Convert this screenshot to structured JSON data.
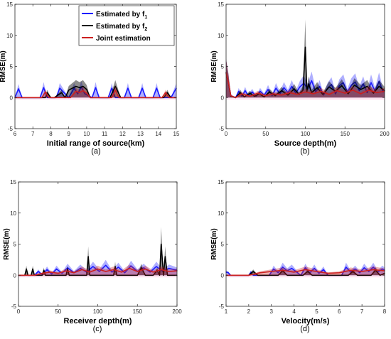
{
  "figure": {
    "panel_captions": [
      "(a)",
      "(b)",
      "(c)",
      "(d)"
    ]
  },
  "colors": {
    "f1": "#1a1aff",
    "f2": "#000000",
    "joint": "#cc1f1f",
    "zero_line": "#ff66aa"
  },
  "legend": {
    "entries": [
      {
        "series": "f1",
        "prefix": "Estimated by f",
        "subscript": "1"
      },
      {
        "series": "f2",
        "prefix": "Estimated by f",
        "subscript": "2"
      },
      {
        "series": "joint",
        "prefix": "Joint estimation",
        "subscript": ""
      }
    ]
  },
  "chart_data": [
    {
      "type": "line",
      "caption": "(a)",
      "xlabel": "Initial range of source(km)",
      "ylabel": "RMSE(m)",
      "xlim": [
        6,
        15
      ],
      "ylim": [
        -5,
        15
      ],
      "xticks": [
        6,
        7,
        8,
        9,
        10,
        11,
        12,
        13,
        14,
        15
      ],
      "yticks": [
        -5,
        0,
        5,
        10,
        15
      ],
      "grid": false,
      "legend_position": "top-right",
      "series": [
        {
          "key": "f1",
          "shaded": true,
          "x": [
            6.0,
            6.2,
            6.4,
            7.4,
            7.6,
            7.8,
            8.3,
            8.5,
            9.0,
            9.3,
            9.5,
            9.7,
            9.9,
            10.3,
            10.5,
            10.7,
            11.2,
            11.4,
            11.6,
            12.1,
            12.3,
            12.5,
            12.9,
            13.1,
            13.3,
            13.7,
            13.9,
            14.1,
            14.7,
            15.0
          ],
          "y": [
            0,
            1.4,
            0,
            0,
            1.6,
            0,
            0,
            1.5,
            0,
            1.5,
            0.6,
            1.7,
            0.6,
            0,
            1.6,
            0,
            0,
            1.5,
            0,
            0,
            1.5,
            0,
            0,
            1.5,
            0,
            0,
            1.5,
            0,
            0,
            1.5
          ]
        },
        {
          "key": "f2",
          "shaded": true,
          "x": [
            6.0,
            7.7,
            7.8,
            8.0,
            8.2,
            8.6,
            8.8,
            9.0,
            9.2,
            9.4,
            9.6,
            9.8,
            10.0,
            10.2,
            11.3,
            11.6,
            11.9,
            14.3,
            14.5,
            14.7,
            15.0
          ],
          "y": [
            0,
            0,
            0.8,
            0,
            0,
            0.8,
            0,
            1.2,
            1.5,
            1.8,
            1.6,
            1.8,
            1.3,
            0,
            0,
            1.8,
            0,
            0,
            0.8,
            0,
            0
          ]
        },
        {
          "key": "joint",
          "shaded": true,
          "x": [
            6.0,
            7.5,
            7.7,
            7.9,
            9.1,
            9.4,
            9.6,
            9.8,
            10.0,
            10.2,
            11.4,
            11.6,
            11.8,
            14.2,
            14.4,
            14.6,
            15.0
          ],
          "y": [
            0,
            0,
            0.9,
            0,
            0,
            1.0,
            0.8,
            1.1,
            0.7,
            0,
            0,
            1.2,
            0,
            0,
            0.8,
            0,
            0
          ]
        }
      ]
    },
    {
      "type": "line",
      "caption": "(b)",
      "xlabel": "Source depth(m)",
      "ylabel": "RMSE(m)",
      "xlim": [
        0,
        200
      ],
      "ylim": [
        -5,
        15
      ],
      "xticks": [
        0,
        50,
        100,
        150,
        200
      ],
      "yticks": [
        -5,
        0,
        5,
        10,
        15
      ],
      "grid": false,
      "legend_position": "none",
      "series": [
        {
          "key": "f1",
          "shaded": true,
          "x": [
            0,
            3,
            6,
            12,
            16,
            20,
            24,
            28,
            33,
            38,
            43,
            48,
            53,
            58,
            63,
            68,
            73,
            78,
            83,
            88,
            93,
            98,
            103,
            108,
            113,
            118,
            123,
            128,
            133,
            138,
            143,
            148,
            153,
            158,
            163,
            168,
            173,
            178,
            183,
            188,
            193,
            198,
            200
          ],
          "y": [
            4.0,
            2.5,
            0.3,
            0,
            1.0,
            0.2,
            1.1,
            0.3,
            0.9,
            0.2,
            1.0,
            0.4,
            1.3,
            0.3,
            1.5,
            0.6,
            1.6,
            0.8,
            1.8,
            0.7,
            1.7,
            2.3,
            1.4,
            2.7,
            0.9,
            1.8,
            0.4,
            1.5,
            2.1,
            0.6,
            1.9,
            2.4,
            0.9,
            2.0,
            2.5,
            1.1,
            2.2,
            0.8,
            2.4,
            1.0,
            2.6,
            0.9,
            1.0
          ]
        },
        {
          "key": "f2",
          "shaded": true,
          "x": [
            0,
            3,
            6,
            12,
            18,
            23,
            30,
            36,
            42,
            48,
            55,
            62,
            70,
            78,
            86,
            92,
            97,
            100,
            102,
            104,
            108,
            115,
            122,
            130,
            138,
            146,
            154,
            162,
            170,
            178,
            186,
            193,
            200
          ],
          "y": [
            4.0,
            2.4,
            0.2,
            0,
            0.8,
            0.1,
            0.7,
            0.2,
            0.6,
            0.1,
            0.9,
            0.3,
            1.1,
            0.4,
            1.4,
            0.5,
            1.2,
            8.1,
            1.0,
            2.2,
            0.8,
            1.6,
            0.5,
            1.7,
            1.0,
            1.9,
            0.6,
            2.0,
            1.3,
            1.8,
            0.7,
            1.8,
            1.1
          ]
        },
        {
          "key": "joint",
          "shaded": true,
          "x": [
            0,
            3,
            6,
            12,
            20,
            30,
            40,
            50,
            60,
            70,
            80,
            90,
            100,
            110,
            120,
            130,
            140,
            150,
            160,
            170,
            180,
            190,
            200
          ],
          "y": [
            4.0,
            2.5,
            0.3,
            0,
            0.6,
            0.2,
            0.7,
            0.3,
            0.6,
            0.4,
            0.8,
            0.5,
            0.9,
            0.6,
            1.0,
            0.5,
            1.1,
            0.7,
            1.2,
            0.6,
            1.2,
            0.8,
            1.0
          ]
        }
      ]
    },
    {
      "type": "line",
      "caption": "(c)",
      "xlabel": "Receiver depth(m)",
      "ylabel": "RMSE(m)",
      "xlim": [
        0,
        200
      ],
      "ylim": [
        -5,
        15
      ],
      "xticks": [
        0,
        50,
        100,
        150,
        200
      ],
      "yticks": [
        -5,
        0,
        5,
        10,
        15
      ],
      "grid": false,
      "legend_position": "none",
      "series": [
        {
          "key": "f1",
          "shaded": true,
          "x": [
            0,
            20,
            25,
            30,
            36,
            42,
            48,
            55,
            62,
            70,
            78,
            86,
            94,
            102,
            110,
            118,
            126,
            134,
            142,
            150,
            158,
            166,
            174,
            182,
            190,
            200
          ],
          "y": [
            0,
            0,
            0.6,
            0.1,
            0.9,
            0.2,
            1.0,
            0.3,
            1.2,
            0.4,
            1.1,
            0.5,
            1.4,
            0.6,
            1.6,
            0.5,
            1.3,
            0.4,
            1.5,
            0.6,
            1.2,
            0.5,
            1.4,
            0.6,
            1.1,
            0.8
          ]
        },
        {
          "key": "f2",
          "shaded": true,
          "x": [
            0,
            8,
            10,
            12,
            16,
            18,
            20,
            30,
            32,
            34,
            60,
            62,
            64,
            86,
            88,
            90,
            120,
            122,
            124,
            150,
            155,
            160,
            170,
            175,
            178,
            180,
            183,
            185,
            188,
            200
          ],
          "y": [
            0,
            0,
            1.0,
            0,
            0,
            1.0,
            0,
            0,
            0.8,
            0,
            0,
            1.0,
            0,
            0,
            3.0,
            0,
            0,
            1.4,
            0,
            0,
            1.2,
            0,
            0,
            0.8,
            0,
            5.0,
            0,
            3.0,
            0,
            0
          ]
        },
        {
          "key": "joint",
          "shaded": true,
          "x": [
            0,
            20,
            30,
            40,
            50,
            60,
            70,
            80,
            90,
            100,
            110,
            120,
            130,
            140,
            150,
            160,
            170,
            180,
            190,
            200
          ],
          "y": [
            0,
            0,
            0.3,
            0.5,
            0.3,
            0.7,
            0.4,
            0.9,
            0.5,
            1.0,
            0.6,
            0.9,
            0.5,
            1.1,
            0.6,
            1.0,
            0.5,
            0.9,
            0.6,
            0.7
          ]
        }
      ]
    },
    {
      "type": "line",
      "caption": "(d)",
      "xlabel": "Velocity(m/s)",
      "ylabel": "RMSE(m)",
      "xlim": [
        1,
        8
      ],
      "ylim": [
        -5,
        15
      ],
      "xticks": [
        1,
        2,
        3,
        4,
        5,
        6,
        7,
        8
      ],
      "yticks": [
        -5,
        0,
        5,
        10,
        15
      ],
      "grid": false,
      "legend_position": "none",
      "series": [
        {
          "key": "f1",
          "shaded": true,
          "x": [
            1.0,
            1.1,
            1.2,
            2.0,
            2.1,
            2.2,
            2.9,
            3.1,
            3.3,
            3.5,
            3.7,
            3.9,
            4.3,
            4.5,
            4.7,
            4.9,
            5.1,
            5.3,
            5.5,
            6.1,
            6.3,
            6.5,
            6.7,
            6.9,
            7.1,
            7.3,
            7.5,
            7.7,
            7.9,
            8.0
          ],
          "y": [
            0.5,
            0.4,
            0,
            0,
            0.5,
            0,
            0,
            1.0,
            0.4,
            1.3,
            0.7,
            1.1,
            0,
            1.2,
            0.4,
            1.1,
            0.3,
            0.9,
            0,
            0,
            1.3,
            0.5,
            1.0,
            0.4,
            1.2,
            0.6,
            1.3,
            0.5,
            1.0,
            0.8
          ]
        },
        {
          "key": "f2",
          "shaded": true,
          "x": [
            1.0,
            2.0,
            2.2,
            2.4,
            2.6,
            3.3,
            3.5,
            3.7,
            4.4,
            4.6,
            4.8,
            6.4,
            6.6,
            6.8,
            7.4,
            7.6,
            7.8,
            8.0
          ],
          "y": [
            0,
            0,
            0.6,
            0,
            0,
            0,
            0.7,
            0,
            0,
            0.6,
            0,
            0,
            0.6,
            0,
            0,
            0.8,
            0,
            0.3
          ]
        },
        {
          "key": "joint",
          "shaded": true,
          "x": [
            1.0,
            2.0,
            2.5,
            3.0,
            3.5,
            4.0,
            4.5,
            5.0,
            5.5,
            6.0,
            6.5,
            7.0,
            7.5,
            8.0
          ],
          "y": [
            0,
            0,
            0.4,
            0.6,
            0.8,
            0.5,
            0.9,
            0.6,
            0.3,
            0.4,
            0.8,
            0.6,
            0.9,
            0.7
          ]
        }
      ]
    }
  ]
}
